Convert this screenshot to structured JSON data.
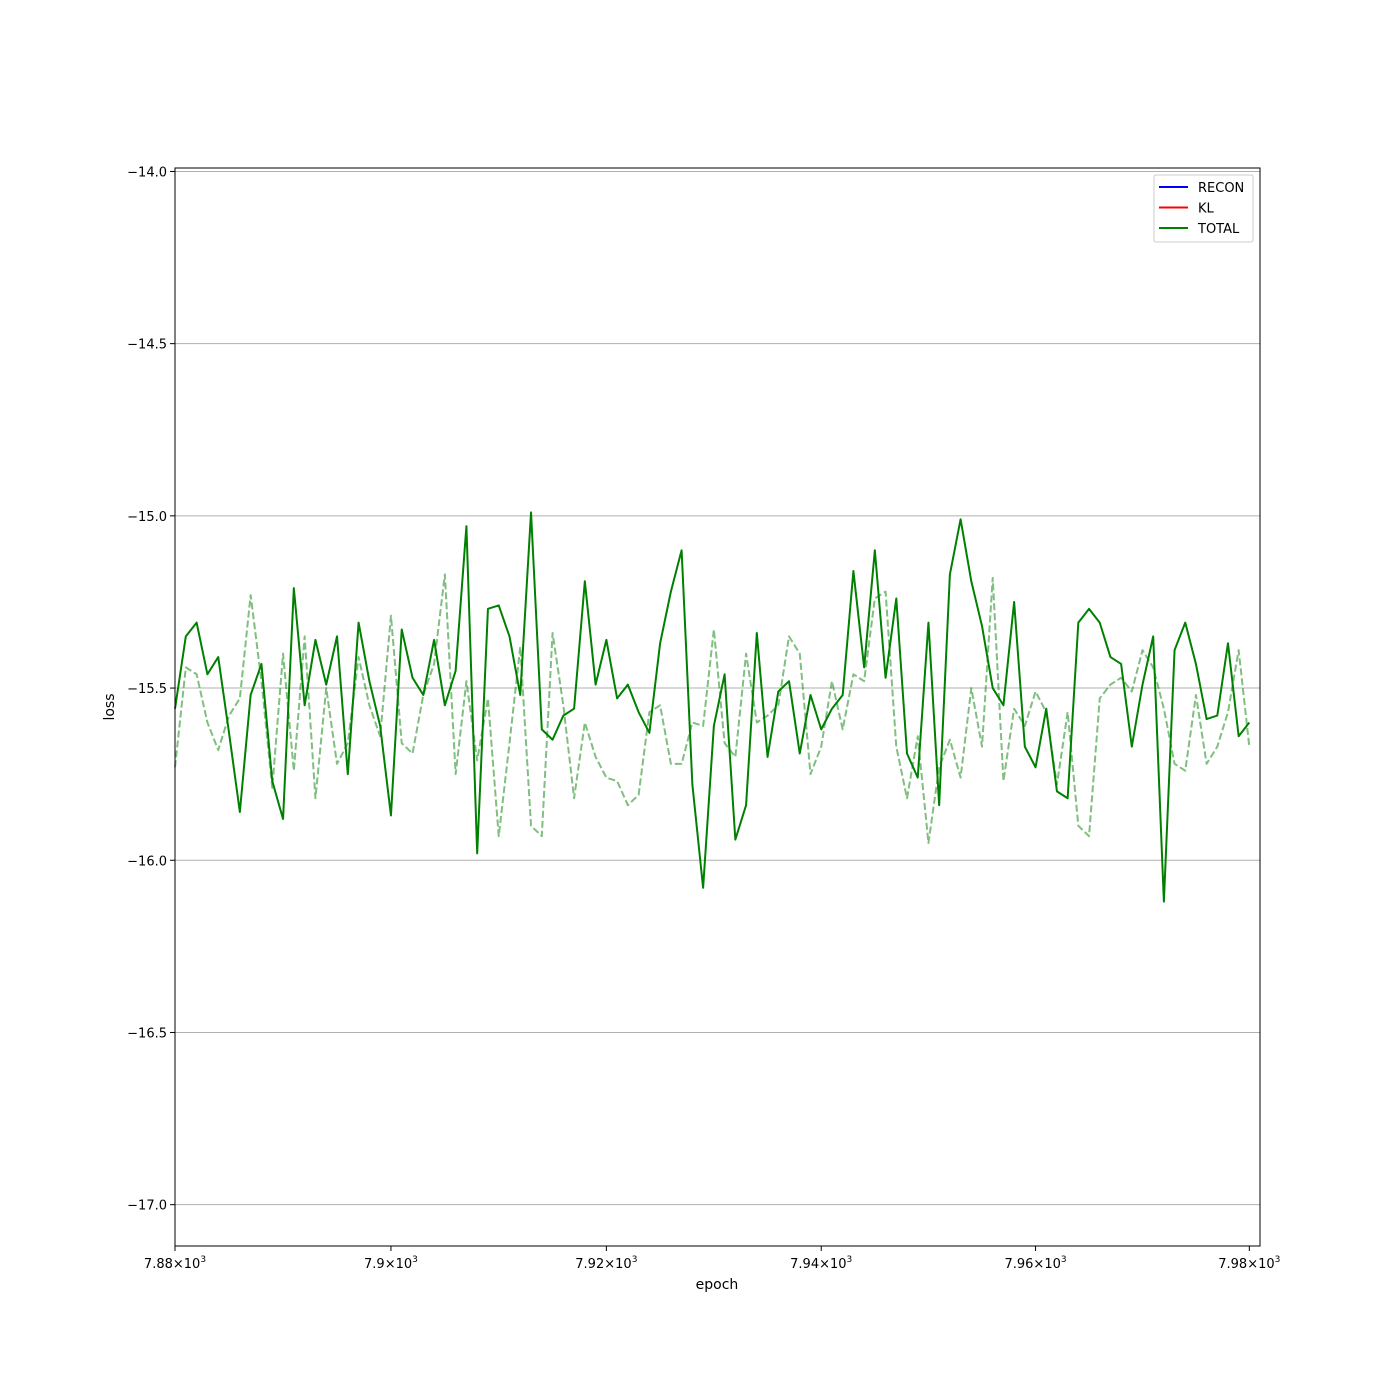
{
  "chart_data": {
    "type": "line",
    "title": "",
    "xlabel": "epoch",
    "ylabel": "loss",
    "xscale": "log",
    "xlim": [
      7880,
      7981
    ],
    "ylim": [
      -17.12,
      -13.99
    ],
    "grid": "horizontal",
    "legend_position": "top-right",
    "xticks": [
      {
        "value": 7880,
        "mantissa": "7.88",
        "base": "10",
        "exp": "3"
      },
      {
        "value": 7900,
        "mantissa": "7.9",
        "base": "10",
        "exp": "3"
      },
      {
        "value": 7920,
        "mantissa": "7.92",
        "base": "10",
        "exp": "3"
      },
      {
        "value": 7940,
        "mantissa": "7.94",
        "base": "10",
        "exp": "3"
      },
      {
        "value": 7960,
        "mantissa": "7.96",
        "base": "10",
        "exp": "3"
      },
      {
        "value": 7980,
        "mantissa": "7.98",
        "base": "10",
        "exp": "3"
      }
    ],
    "yticks": [
      {
        "value": -14.0,
        "label": "−14.0"
      },
      {
        "value": -14.5,
        "label": "−14.5"
      },
      {
        "value": -15.0,
        "label": "−15.0"
      },
      {
        "value": -15.5,
        "label": "−15.5"
      },
      {
        "value": -16.0,
        "label": "−16.0"
      },
      {
        "value": -16.5,
        "label": "−16.5"
      },
      {
        "value": -17.0,
        "label": "−17.0"
      }
    ],
    "legend": [
      {
        "name": "RECON",
        "color": "#0000ff"
      },
      {
        "name": "KL",
        "color": "#ff0000"
      },
      {
        "name": "TOTAL",
        "color": "#008000"
      }
    ],
    "x_start": 7880,
    "x_step": 1,
    "series": [
      {
        "name": "TOTAL",
        "color": "#008000",
        "style": "solid",
        "values": [
          -15.56,
          -15.35,
          -15.31,
          -15.46,
          -15.41,
          -15.63,
          -15.86,
          -15.52,
          -15.43,
          -15.77,
          -15.88,
          -15.21,
          -15.55,
          -15.36,
          -15.49,
          -15.35,
          -15.75,
          -15.31,
          -15.48,
          -15.61,
          -15.87,
          -15.33,
          -15.47,
          -15.52,
          -15.36,
          -15.55,
          -15.45,
          -15.03,
          -15.98,
          -15.27,
          -15.26,
          -15.35,
          -15.52,
          -14.99,
          -15.62,
          -15.65,
          -15.58,
          -15.56,
          -15.19,
          -15.49,
          -15.36,
          -15.53,
          -15.49,
          -15.57,
          -15.63,
          -15.37,
          -15.22,
          -15.1,
          -15.78,
          -16.08,
          -15.61,
          -15.46,
          -15.94,
          -15.84,
          -15.34,
          -15.7,
          -15.51,
          -15.48,
          -15.69,
          -15.52,
          -15.62,
          -15.56,
          -15.52,
          -15.16,
          -15.44,
          -15.1,
          -15.47,
          -15.24,
          -15.69,
          -15.76,
          -15.31,
          -15.84,
          -15.17,
          -15.01,
          -15.19,
          -15.32,
          -15.5,
          -15.55,
          -15.25,
          -15.67,
          -15.73,
          -15.56,
          -15.8,
          -15.82,
          -15.31,
          -15.27,
          -15.31,
          -15.41,
          -15.43,
          -15.67,
          -15.49,
          -15.35,
          -16.12,
          -15.39,
          -15.31,
          -15.43,
          -15.59,
          -15.58,
          -15.37,
          -15.64,
          -15.6
        ]
      },
      {
        "name": "",
        "color": "#008000",
        "style": "dashed",
        "opacity": 0.5,
        "values": [
          -15.73,
          -15.44,
          -15.46,
          -15.6,
          -15.68,
          -15.58,
          -15.53,
          -15.23,
          -15.48,
          -15.79,
          -15.4,
          -15.74,
          -15.35,
          -15.82,
          -15.5,
          -15.72,
          -15.66,
          -15.41,
          -15.55,
          -15.64,
          -15.29,
          -15.66,
          -15.69,
          -15.52,
          -15.43,
          -15.17,
          -15.75,
          -15.48,
          -15.71,
          -15.53,
          -15.93,
          -15.66,
          -15.38,
          -15.9,
          -15.93,
          -15.34,
          -15.55,
          -15.82,
          -15.6,
          -15.7,
          -15.76,
          -15.77,
          -15.84,
          -15.81,
          -15.57,
          -15.55,
          -15.72,
          -15.72,
          -15.6,
          -15.61,
          -15.33,
          -15.66,
          -15.7,
          -15.4,
          -15.6,
          -15.58,
          -15.55,
          -15.35,
          -15.4,
          -15.75,
          -15.67,
          -15.48,
          -15.62,
          -15.46,
          -15.48,
          -15.24,
          -15.22,
          -15.67,
          -15.82,
          -15.64,
          -15.95,
          -15.73,
          -15.65,
          -15.76,
          -15.5,
          -15.67,
          -15.18,
          -15.77,
          -15.56,
          -15.61,
          -15.51,
          -15.57,
          -15.78,
          -15.57,
          -15.9,
          -15.93,
          -15.53,
          -15.49,
          -15.47,
          -15.51,
          -15.39,
          -15.44,
          -15.56,
          -15.72,
          -15.74,
          -15.52,
          -15.72,
          -15.67,
          -15.57,
          -15.39,
          -15.67
        ]
      }
    ]
  }
}
